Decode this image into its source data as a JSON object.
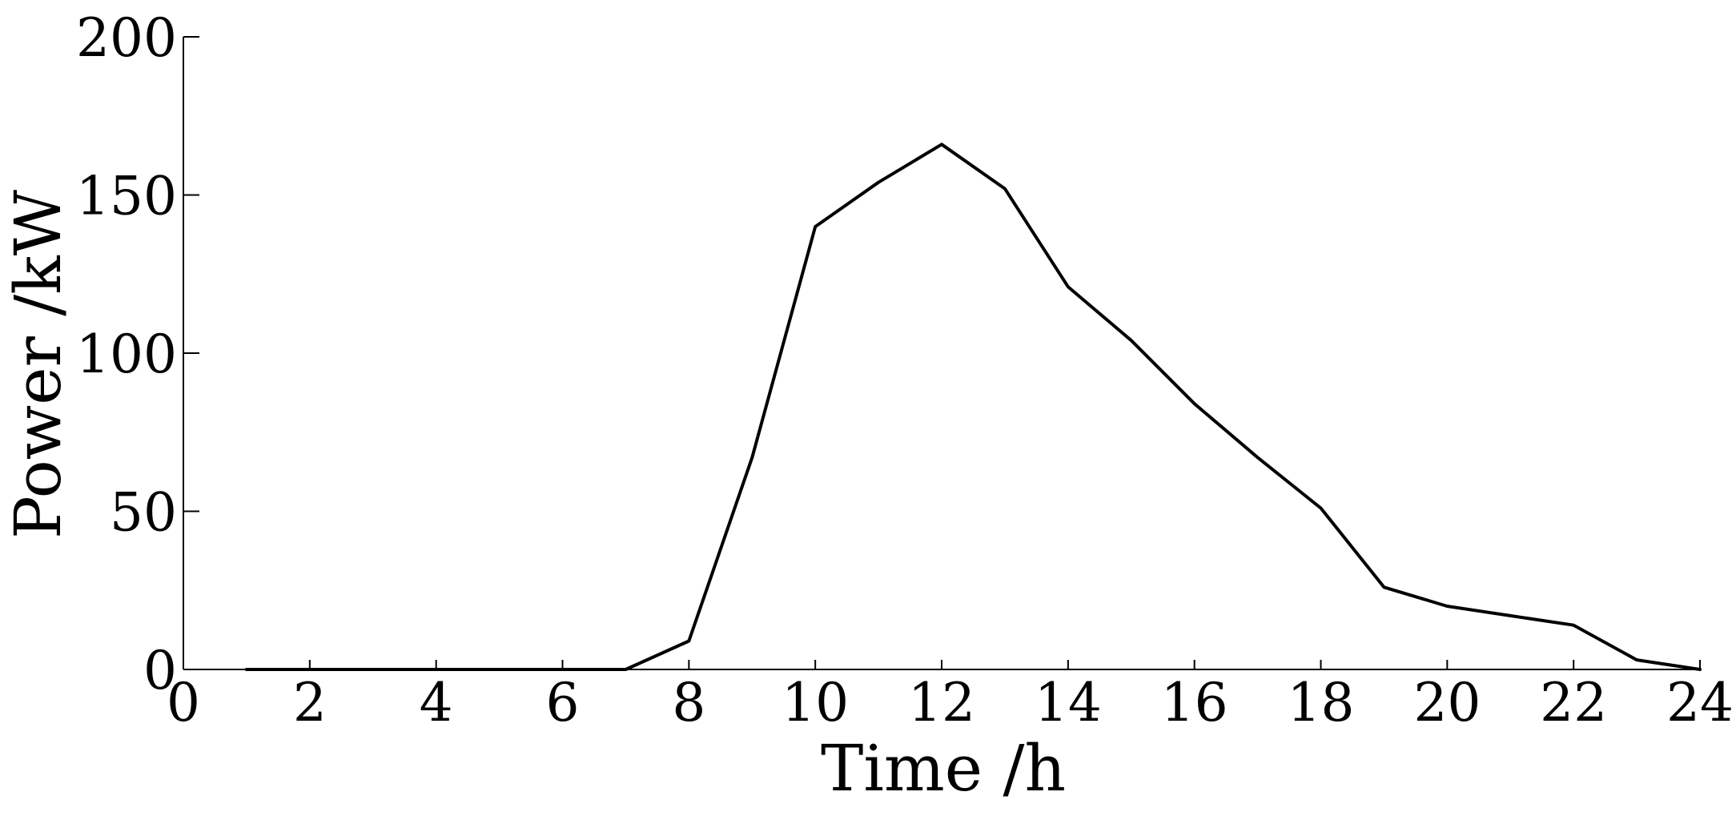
{
  "chart_data": {
    "type": "line",
    "title": "",
    "xlabel": "Time /h",
    "ylabel": "Power /kW",
    "xlim": [
      0,
      24
    ],
    "ylim": [
      0,
      200
    ],
    "xticks": [
      0,
      2,
      4,
      6,
      8,
      10,
      12,
      14,
      16,
      18,
      20,
      22,
      24
    ],
    "yticks": [
      0,
      50,
      100,
      150,
      200
    ],
    "grid": false,
    "legend": "none",
    "line_color": "#000000",
    "series": [
      {
        "x": [
          1,
          2,
          3,
          4,
          5,
          6,
          7,
          8,
          9,
          10,
          11,
          12,
          13,
          14,
          15,
          16,
          17,
          18,
          19,
          20,
          21,
          22,
          23,
          24
        ],
        "values": [
          0,
          0,
          0,
          0,
          0,
          0,
          0,
          9,
          67,
          140,
          154,
          166,
          152,
          121,
          104,
          84,
          67,
          51,
          26,
          20,
          17,
          14,
          3,
          0
        ]
      }
    ]
  }
}
